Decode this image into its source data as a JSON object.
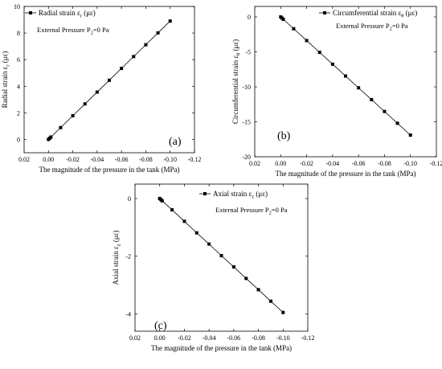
{
  "chart_data": [
    {
      "panel_label": "(a)",
      "type": "line",
      "legend": "Radial strain ε",
      "legend_sub": "r",
      "legend_tail": " (με)",
      "note": "External Pressure P",
      "note_sub": "2",
      "note_tail": "=0 Pa",
      "xlabel": "The magnitude of the pressure in the tank (MPa)",
      "ylabel": "Radial strain ε",
      "ylabel_sub": "r",
      "ylabel_tail": " (με)",
      "x_reversed": true,
      "xlim": [
        0.02,
        -0.12
      ],
      "ylim": [
        -1,
        10
      ],
      "xticks": [
        0.02,
        0.0,
        -0.02,
        -0.04,
        -0.06,
        -0.08,
        -0.1,
        -0.12
      ],
      "xtick_labels": [
        "0.02",
        "0.00",
        "-0.02",
        "-0.04",
        "-0.06",
        "-0.08",
        "-0.10",
        "-0.12"
      ],
      "yticks": [
        0,
        2,
        4,
        6,
        8,
        10
      ],
      "ytick_labels": [
        "0",
        "2",
        "4",
        "6",
        "8",
        "10"
      ],
      "x": [
        0.0,
        -0.001,
        -0.002,
        -0.01,
        -0.02,
        -0.03,
        -0.04,
        -0.05,
        -0.06,
        -0.07,
        -0.08,
        -0.09,
        -0.1
      ],
      "y": [
        0.0,
        0.09,
        0.18,
        0.89,
        1.78,
        2.67,
        3.56,
        4.45,
        5.34,
        6.23,
        7.12,
        8.01,
        8.9
      ]
    },
    {
      "panel_label": "(b)",
      "type": "line",
      "legend": "Circumferential strain ε",
      "legend_sub": "θ",
      "legend_tail": " (με)",
      "note": "External Pressure P",
      "note_sub": "2",
      "note_tail": "=0 Pa",
      "xlabel": "The magnitude of the pressure in the tank (MPa)",
      "ylabel": "Circumferential strain ε",
      "ylabel_sub": "θ",
      "ylabel_tail": " (με)",
      "x_reversed": true,
      "xlim": [
        0.02,
        -0.12
      ],
      "ylim": [
        -20,
        1.5
      ],
      "xticks": [
        0.02,
        0.0,
        -0.02,
        -0.04,
        -0.06,
        -0.08,
        -0.1,
        -0.12
      ],
      "xtick_labels": [
        "0.02",
        "0.00",
        "-0.02",
        "-0.04",
        "-0.06",
        "-0.08",
        "-0.10",
        "-0.12"
      ],
      "yticks": [
        0,
        -5,
        -10,
        -15,
        -20
      ],
      "ytick_labels": [
        "0",
        "-5",
        "-10",
        "-15",
        "-20"
      ],
      "x": [
        0.0,
        -0.001,
        -0.002,
        -0.01,
        -0.02,
        -0.03,
        -0.04,
        -0.05,
        -0.06,
        -0.07,
        -0.08,
        -0.09,
        -0.1
      ],
      "y": [
        0.0,
        -0.17,
        -0.34,
        -1.69,
        -3.38,
        -5.07,
        -6.76,
        -8.45,
        -10.14,
        -11.83,
        -13.52,
        -15.21,
        -16.9
      ]
    },
    {
      "panel_label": "(c)",
      "type": "line",
      "legend": "Axial strain ε",
      "legend_sub": "z",
      "legend_tail": " (με)",
      "note": "External Pressure P",
      "note_sub": "2",
      "note_tail": "=0 Pa",
      "xlabel": "The magnitude of the pressure in the tank (MPa)",
      "ylabel": "Axial strain ε",
      "ylabel_sub": "z",
      "ylabel_tail": " (με)",
      "x_reversed": true,
      "xlim": [
        0.02,
        -0.12
      ],
      "ylim": [
        -4.6,
        0.5
      ],
      "xticks": [
        0.02,
        0.0,
        -0.02,
        -0.04,
        -0.06,
        -0.08,
        -0.1,
        -0.12
      ],
      "xtick_labels": [
        "0.02",
        "0.00",
        "-0.02",
        "-0.04",
        "-0.06",
        "-0.08",
        "-0.10",
        "-0.12"
      ],
      "yticks": [
        0,
        -2,
        -4
      ],
      "ytick_labels": [
        "0",
        "-2",
        "-4"
      ],
      "x": [
        0.0,
        -0.001,
        -0.002,
        -0.01,
        -0.02,
        -0.03,
        -0.04,
        -0.05,
        -0.06,
        -0.07,
        -0.08,
        -0.09,
        -0.1
      ],
      "y": [
        0.0,
        -0.04,
        -0.08,
        -0.39,
        -0.79,
        -1.19,
        -1.58,
        -1.98,
        -2.37,
        -2.77,
        -3.16,
        -3.56,
        -3.95
      ]
    }
  ]
}
